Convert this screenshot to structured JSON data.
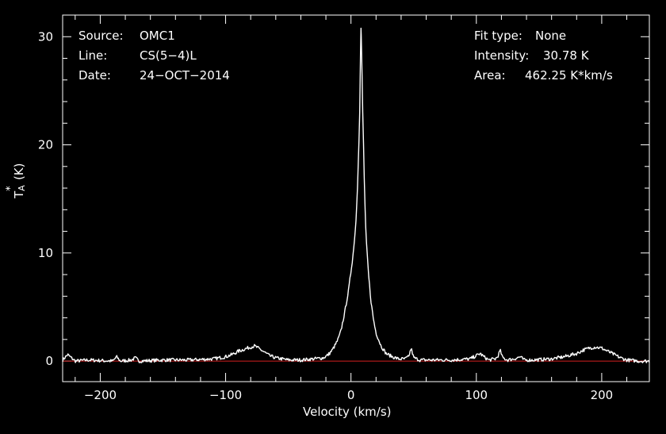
{
  "header_left": {
    "source_label": "Source:",
    "source_value": "OMC1",
    "line_label": "Line:",
    "line_value": "CS(5−4)L",
    "date_label": "Date:",
    "date_value": "24−OCT−2014"
  },
  "header_right": {
    "fit_label": "Fit type:",
    "fit_value": "None",
    "intensity_label": "Intensity:",
    "intensity_value": "30.78 K",
    "area_label": "Area:",
    "area_value": "462.25 K*km/s"
  },
  "colors": {
    "background": "#000000",
    "spectrum": "#ffffff",
    "axes": "#ffffff",
    "baseline": "#d42020"
  },
  "chart_data": {
    "type": "line",
    "xlabel": "Velocity (km/s)",
    "ylabel_main": "T",
    "ylabel_sup": "*",
    "ylabel_sub": "A",
    "ylabel_unit": "(K)",
    "xlim": [
      -230,
      238
    ],
    "ylim": [
      -1.9,
      32.0
    ],
    "x_ticks": [
      -200,
      -100,
      0,
      100,
      200
    ],
    "x_tick_labels": [
      "−200",
      "−100",
      "0",
      "100",
      "200"
    ],
    "y_ticks": [
      0,
      10,
      20,
      30
    ],
    "y_tick_labels": [
      "0",
      "10",
      "20",
      "30"
    ],
    "baseline_y": 0,
    "series": [
      {
        "x": [
          -230,
          -226,
          -220,
          -210,
          -190,
          -187,
          -184,
          -175,
          -172,
          -169,
          -150,
          -130,
          -110,
          -100,
          -95,
          -90,
          -85,
          -80,
          -77,
          -74,
          -70,
          -65,
          -60,
          -50,
          -40,
          -30,
          -22,
          -18,
          -15,
          -12,
          -10,
          -8,
          -5,
          -2,
          0,
          2,
          4,
          5,
          6,
          7,
          7.5,
          8,
          8.5,
          9,
          10,
          11,
          12,
          14,
          16,
          18,
          20,
          24,
          28,
          33,
          38,
          43,
          46,
          48,
          50,
          55,
          65,
          80,
          95,
          100,
          103,
          106,
          110,
          115,
          117,
          119,
          121,
          125,
          130,
          135,
          138,
          145,
          160,
          170,
          180,
          185,
          190,
          195,
          200,
          205,
          210,
          215,
          220,
          230,
          238
        ],
        "y": [
          0.1,
          0.6,
          0.0,
          0.1,
          0.0,
          0.4,
          0.0,
          0.1,
          0.3,
          0.0,
          0.1,
          0.1,
          0.2,
          0.4,
          0.6,
          0.9,
          1.1,
          1.3,
          1.4,
          1.2,
          0.9,
          0.5,
          0.3,
          0.1,
          0.1,
          0.2,
          0.3,
          0.6,
          1.0,
          1.6,
          2.1,
          2.8,
          4.5,
          6.5,
          8.3,
          10.2,
          13.0,
          15.5,
          19.0,
          23.0,
          28.0,
          30.78,
          29.0,
          25.0,
          20.0,
          15.0,
          11.5,
          8.0,
          5.5,
          3.8,
          2.6,
          1.4,
          0.7,
          0.4,
          0.2,
          0.2,
          0.4,
          1.2,
          0.3,
          0.1,
          0.1,
          0.1,
          0.2,
          0.5,
          0.7,
          0.4,
          0.1,
          0.2,
          0.4,
          1.0,
          0.3,
          0.1,
          0.2,
          0.4,
          0.1,
          0.1,
          0.2,
          0.4,
          0.7,
          1.0,
          1.2,
          1.3,
          1.2,
          0.9,
          0.6,
          0.3,
          0.1,
          0.0,
          0.0
        ]
      }
    ]
  }
}
